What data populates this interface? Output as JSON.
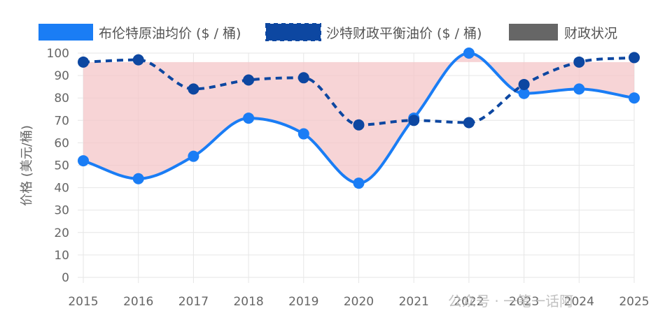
{
  "chart_data": {
    "type": "line",
    "categories": [
      "2015",
      "2016",
      "2017",
      "2018",
      "2019",
      "2020",
      "2021",
      "2022",
      "2023",
      "2024",
      "2025"
    ],
    "series": [
      {
        "name": "布伦特原油均价 ($ / 桶)",
        "values": [
          52,
          44,
          54,
          71,
          64,
          42,
          71,
          100,
          82,
          84,
          80
        ],
        "color": "#1a7df5",
        "style": "solid"
      },
      {
        "name": "沙特财政平衡油价 ($ / 桶)",
        "values": [
          96,
          97,
          84,
          88,
          89,
          68,
          70,
          69,
          86,
          96,
          98
        ],
        "color": "#0d47a1",
        "style": "dashed"
      }
    ],
    "fill": {
      "name": "财政状况",
      "color": "#f4c5c8",
      "legend_color": "#666666"
    },
    "ylabel": "价格 (美元/桶)",
    "xlabel": "",
    "ylim": [
      0,
      100
    ],
    "yticks": [
      0,
      10,
      20,
      30,
      40,
      50,
      60,
      70,
      80,
      90,
      100
    ],
    "grid": true,
    "legend_position": "top"
  },
  "watermark": "公众号 · 一笔一话阿"
}
